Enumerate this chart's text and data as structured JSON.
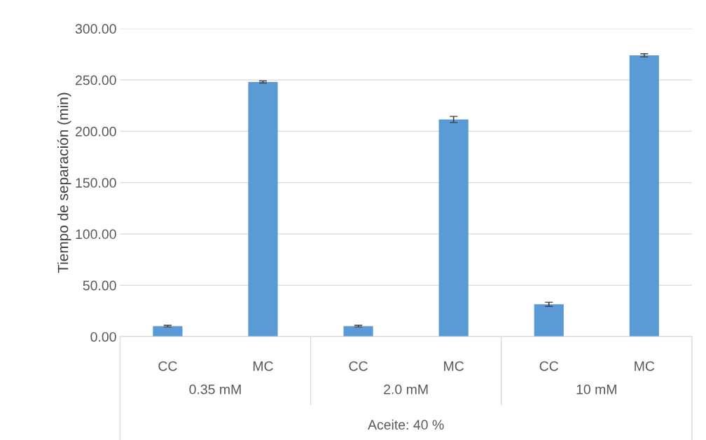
{
  "chart_data": {
    "type": "bar",
    "ylabel": "Tiempo de separación (min)",
    "xlabel": "Aceite: 40 %",
    "categories": [
      "CC",
      "MC",
      "CC",
      "MC",
      "CC",
      "MC"
    ],
    "values": [
      10.2,
      248,
      10.2,
      211.5,
      31.5,
      274
    ],
    "errors": [
      0.8,
      1,
      0.8,
      3,
      2,
      1.5
    ],
    "color": "#5b9bd5",
    "annotations": [
      "0.35 mM",
      "2.0 mM",
      "10 mM"
    ],
    "ylim": [
      0,
      300
    ],
    "yticks": [
      {
        "value": 0,
        "label": "0.00"
      },
      {
        "value": 50,
        "label": "50.00"
      },
      {
        "value": 100,
        "label": "100.00"
      },
      {
        "value": 150,
        "label": "150.00"
      },
      {
        "value": 200,
        "label": "200.00"
      },
      {
        "value": 250,
        "label": "250.00"
      },
      {
        "value": 300,
        "label": "300.00"
      }
    ],
    "grid": "y"
  }
}
